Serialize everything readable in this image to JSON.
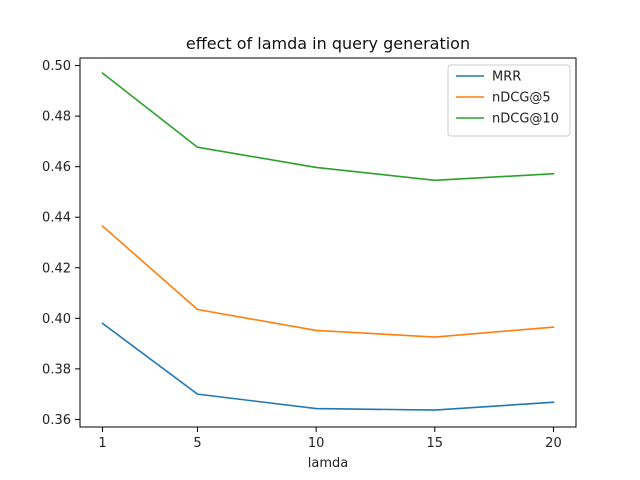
{
  "chart_data": {
    "type": "line",
    "title": "effect of lamda in query generation",
    "xlabel": "lamda",
    "ylabel": "",
    "x": [
      1,
      5,
      10,
      15,
      20
    ],
    "x_tick_labels": [
      "1",
      "5",
      "10",
      "15",
      "20"
    ],
    "ylim": [
      0.357,
      0.503
    ],
    "y_ticks": [
      0.36,
      0.38,
      0.4,
      0.42,
      0.44,
      0.46,
      0.48,
      0.5
    ],
    "y_tick_labels": [
      "0.36",
      "0.38",
      "0.40",
      "0.42",
      "0.44",
      "0.46",
      "0.48",
      "0.50"
    ],
    "grid": false,
    "legend_position": "top-right",
    "series": [
      {
        "name": "MRR",
        "color": "#1f77b4",
        "values": [
          0.398,
          0.37,
          0.3643,
          0.3637,
          0.3668
        ]
      },
      {
        "name": "nDCG@5",
        "color": "#ff7f0e",
        "values": [
          0.4365,
          0.4035,
          0.3952,
          0.3926,
          0.3965
        ]
      },
      {
        "name": "nDCG@10",
        "color": "#2ca02c",
        "values": [
          0.497,
          0.4677,
          0.4597,
          0.4546,
          0.4572
        ]
      }
    ]
  }
}
